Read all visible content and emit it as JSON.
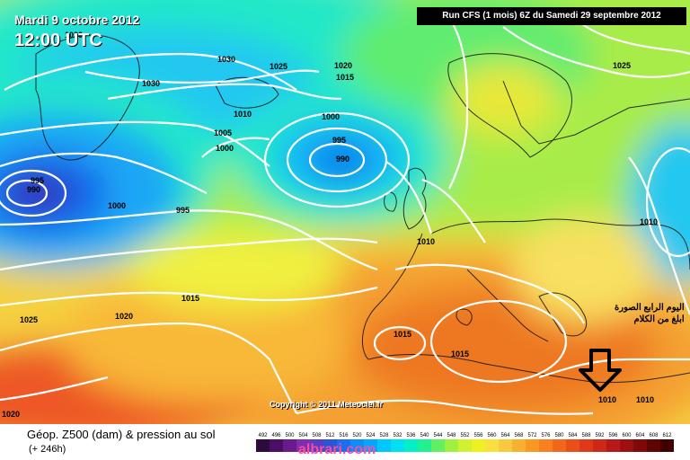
{
  "header": {
    "date": "Mardi 9 octobre 2012",
    "time": "12:00 UTC",
    "run": "Run CFS (1 mois) 6Z du Samedi 29 septembre 2012"
  },
  "isobars": [
    {
      "id": "i1",
      "text": "1030"
    },
    {
      "id": "i2",
      "text": "1030"
    },
    {
      "id": "i3",
      "text": "1025"
    },
    {
      "id": "i4",
      "text": "1020"
    },
    {
      "id": "i5",
      "text": "1015"
    },
    {
      "id": "i6",
      "text": "1010"
    },
    {
      "id": "i7",
      "text": "1005"
    },
    {
      "id": "i8",
      "text": "1000"
    },
    {
      "id": "i9",
      "text": "1000"
    },
    {
      "id": "i10",
      "text": "995"
    },
    {
      "id": "i11",
      "text": "990"
    },
    {
      "id": "i12",
      "text": "995"
    },
    {
      "id": "i13",
      "text": "990"
    },
    {
      "id": "i14",
      "text": "1000"
    },
    {
      "id": "i15",
      "text": "995"
    },
    {
      "id": "i16",
      "text": "1025"
    },
    {
      "id": "i17",
      "text": "1010"
    },
    {
      "id": "i18",
      "text": "1010"
    },
    {
      "id": "i19",
      "text": "1015"
    },
    {
      "id": "i20",
      "text": "1025"
    },
    {
      "id": "i21",
      "text": "1020"
    },
    {
      "id": "i22",
      "text": "1015"
    },
    {
      "id": "i23",
      "text": "1015"
    },
    {
      "id": "i24",
      "text": "1020"
    },
    {
      "id": "i25",
      "text": "1010"
    },
    {
      "id": "i26",
      "text": "1010"
    },
    {
      "id": "i27",
      "text": "1020"
    }
  ],
  "annotation": {
    "arabic_line1": "اليوم الرابع الصورة",
    "arabic_line2": "ابلغ من الكلام"
  },
  "copyright": "Copyright © 2011 Meteociel.fr",
  "footer": {
    "caption": "Géop. Z500 (dam) & pression au sol",
    "hours": "(+ 246h)",
    "watermark": "albrari.com"
  },
  "legend": {
    "values": [
      "492",
      "496",
      "500",
      "504",
      "508",
      "512",
      "516",
      "520",
      "524",
      "528",
      "532",
      "536",
      "540",
      "544",
      "548",
      "552",
      "556",
      "560",
      "564",
      "568",
      "572",
      "576",
      "580",
      "584",
      "588",
      "592",
      "596",
      "600",
      "604",
      "608",
      "612"
    ],
    "colors": [
      "#2b0a3d",
      "#4a0f63",
      "#6a1a8a",
      "#7c2fae",
      "#5540c4",
      "#2a55d6",
      "#1c6ef0",
      "#0c8ef8",
      "#00a8ff",
      "#00c8ff",
      "#00e0f0",
      "#00f0c8",
      "#20f090",
      "#60f060",
      "#a0f040",
      "#d0f030",
      "#f0f020",
      "#f8e040",
      "#f8c840",
      "#f8b030",
      "#f89820",
      "#f88020",
      "#f06818",
      "#e85018",
      "#e03818",
      "#d02818",
      "#b81818",
      "#9c1010",
      "#800808",
      "#600404",
      "#400000"
    ]
  },
  "colors": {
    "contour": "#ffffff",
    "arrow": "#000000"
  }
}
